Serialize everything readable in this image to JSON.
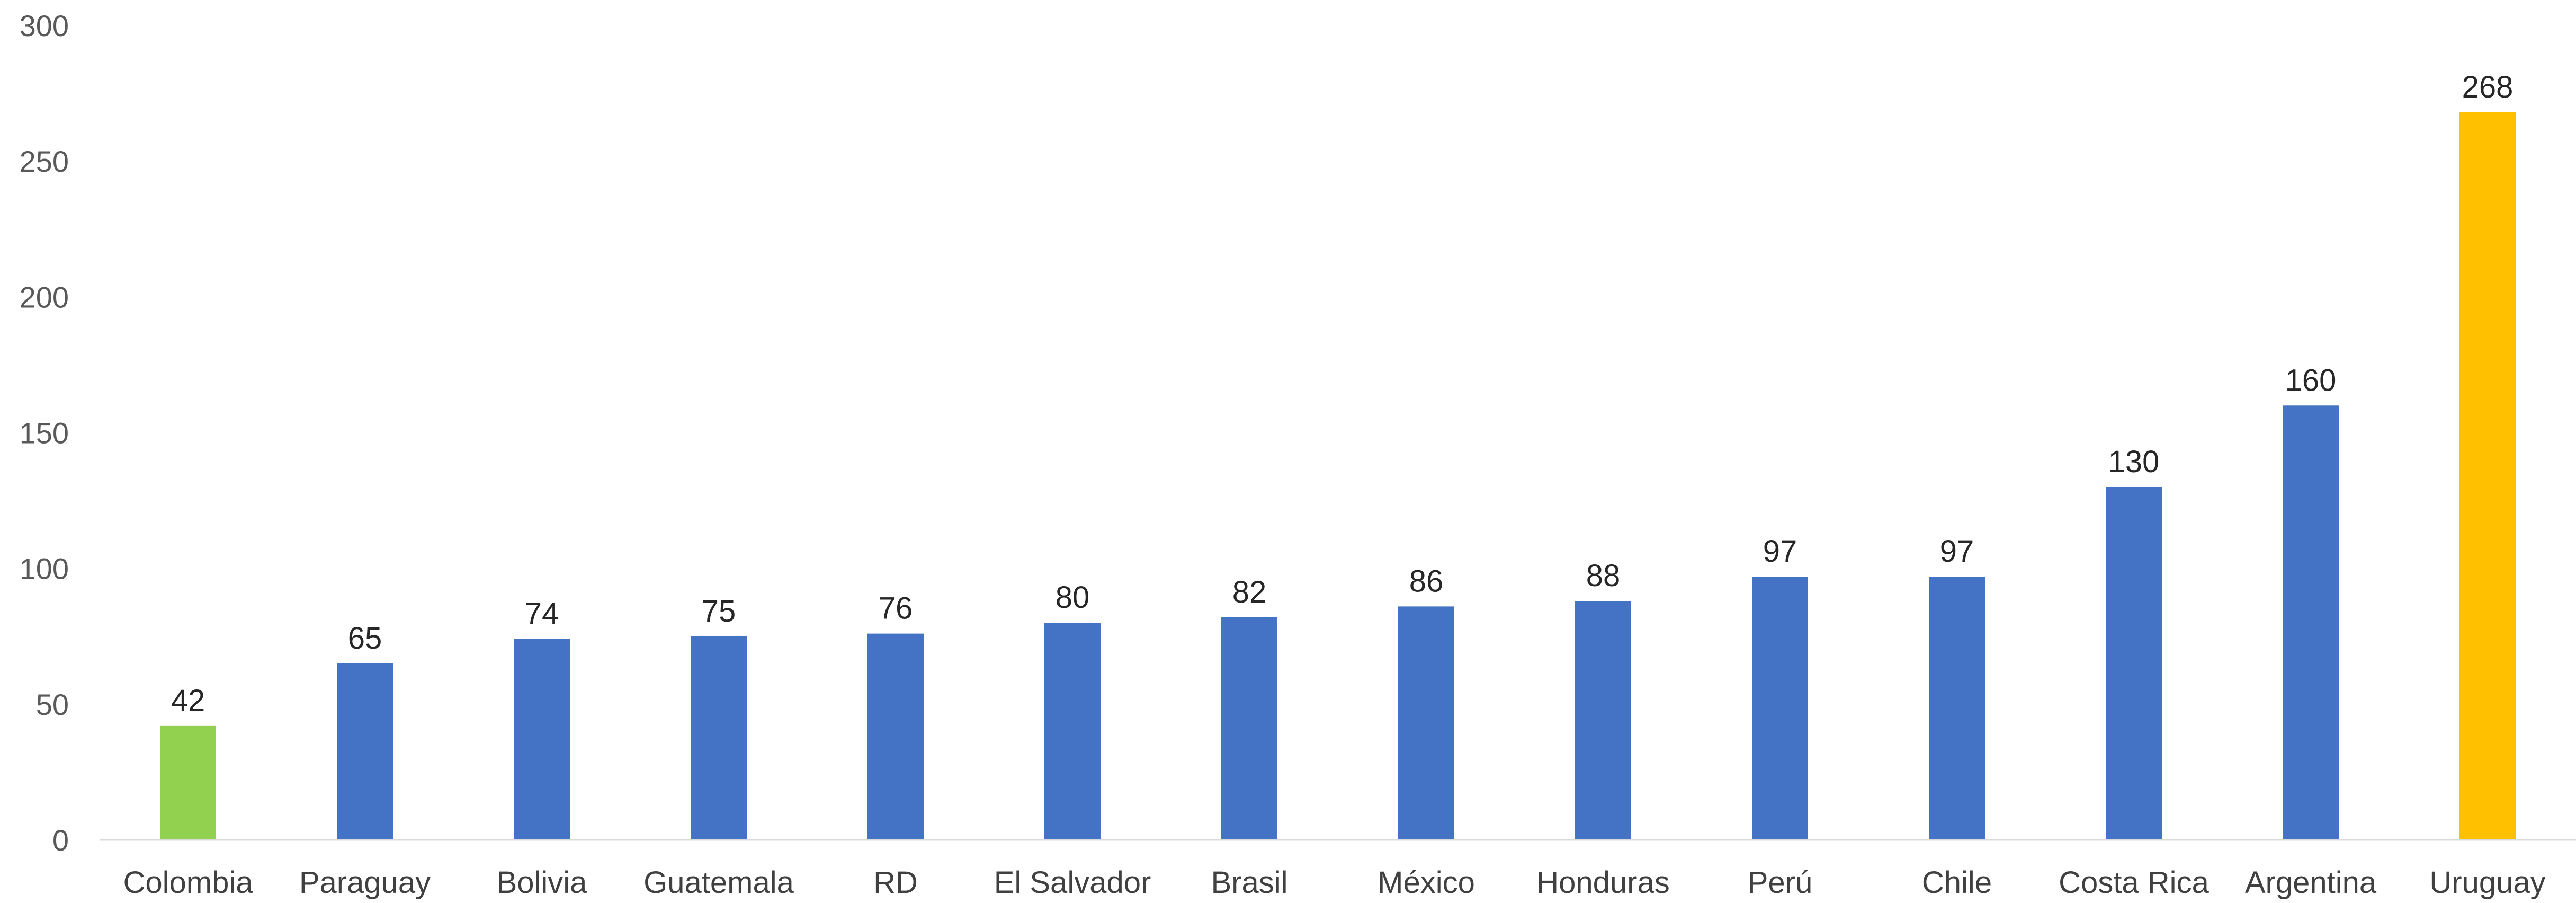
{
  "chart_data": {
    "type": "bar",
    "title": "",
    "xlabel": "",
    "ylabel": "",
    "ylim": [
      0,
      300
    ],
    "yticks": [
      0,
      50,
      100,
      150,
      200,
      250,
      300
    ],
    "grid": false,
    "legend": "none",
    "categories": [
      "Colombia",
      "Paraguay",
      "Bolivia",
      "Guatemala",
      "RD",
      "El Salvador",
      "Brasil",
      "México",
      "Honduras",
      "Perú",
      "Chile",
      "Costa Rica",
      "Argentina",
      "Uruguay"
    ],
    "values": [
      42,
      65,
      74,
      75,
      76,
      80,
      82,
      86,
      88,
      97,
      97,
      130,
      160,
      268
    ],
    "colors": [
      "#92d050",
      "#4472c4",
      "#4472c4",
      "#4472c4",
      "#4472c4",
      "#4472c4",
      "#4472c4",
      "#4472c4",
      "#4472c4",
      "#4472c4",
      "#4472c4",
      "#4472c4",
      "#4472c4",
      "#ffc000"
    ],
    "axis_color": "#d9d9d9"
  }
}
